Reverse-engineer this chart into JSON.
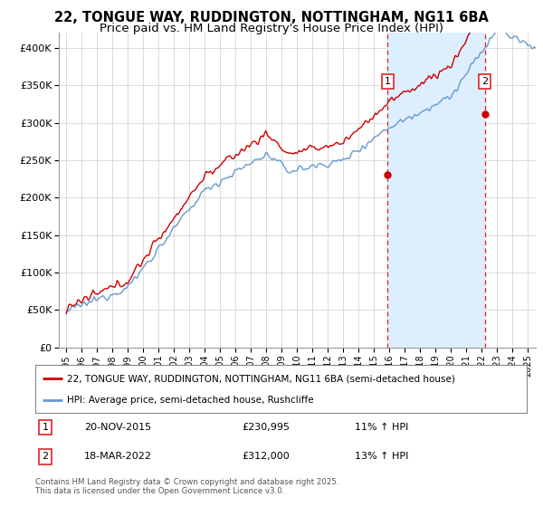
{
  "title": "22, TONGUE WAY, RUDDINGTON, NOTTINGHAM, NG11 6BA",
  "subtitle": "Price paid vs. HM Land Registry's House Price Index (HPI)",
  "legend_line1": "22, TONGUE WAY, RUDDINGTON, NOTTINGHAM, NG11 6BA (semi-detached house)",
  "legend_line2": "HPI: Average price, semi-detached house, Rushcliffe",
  "footnote": "Contains HM Land Registry data © Crown copyright and database right 2025.\nThis data is licensed under the Open Government Licence v3.0.",
  "transaction1_date": "20-NOV-2015",
  "transaction1_price": "£230,995",
  "transaction1_hpi": "11% ↑ HPI",
  "transaction2_date": "18-MAR-2022",
  "transaction2_price": "£312,000",
  "transaction2_hpi": "13% ↑ HPI",
  "transaction1_x": 2015.89,
  "transaction1_y": 230995,
  "transaction2_x": 2022.21,
  "transaction2_y": 312000,
  "vline1_x": 2015.89,
  "vline2_x": 2022.21,
  "ylim": [
    0,
    420000
  ],
  "xlim": [
    1994.5,
    2025.5
  ],
  "plot_bg_color": "#ffffff",
  "red_color": "#cc0000",
  "blue_color": "#6699cc",
  "shade_color": "#ddeeff",
  "vline_color": "#dd2222",
  "grid_color": "#cccccc",
  "title_fontsize": 10.5,
  "subtitle_fontsize": 9.5,
  "ytick_labels": [
    "£0",
    "£50K",
    "£100K",
    "£150K",
    "£200K",
    "£250K",
    "£300K",
    "£350K",
    "£400K"
  ],
  "ytick_vals": [
    0,
    50000,
    100000,
    150000,
    200000,
    250000,
    300000,
    350000,
    400000
  ]
}
